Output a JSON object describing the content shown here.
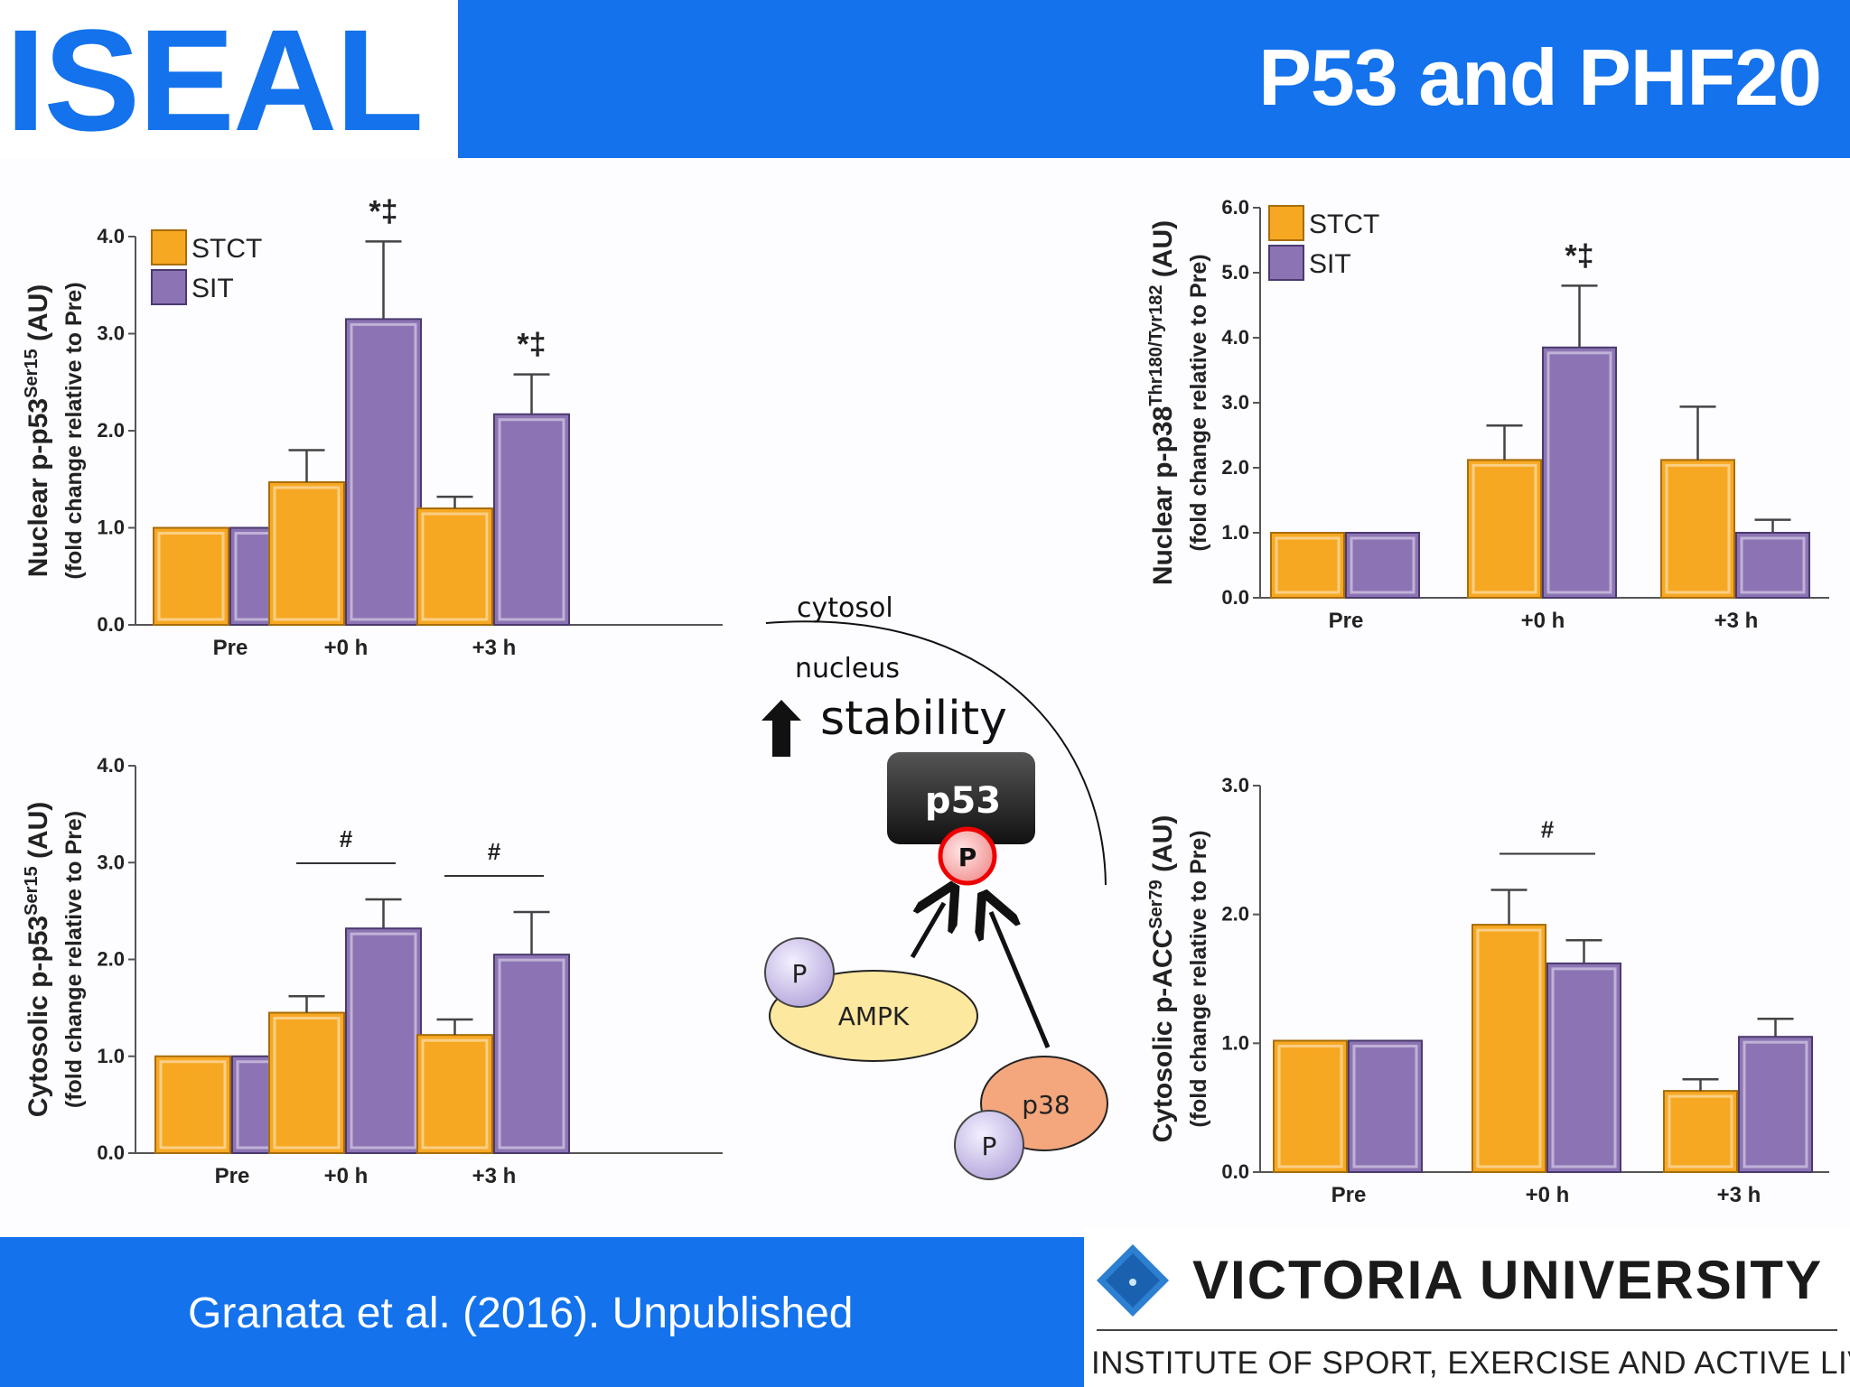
{
  "header": {
    "logo": "ISEAL",
    "title": "P53 and PHF20"
  },
  "footer": {
    "citation": "Granata et al. (2016). Unpublished",
    "university": "VICTORIA UNIVERSITY",
    "institute": "INSTITUTE OF SPORT, EXERCISE AND ACTIVE LIVING"
  },
  "colors": {
    "accent": "#1372ec",
    "stct": "#f7a823",
    "sit": "#8c74b4"
  },
  "diagram": {
    "cytosol": "cytosol",
    "nucleus": "nucleus",
    "stability": "stability",
    "p53": "p53",
    "p": "P",
    "ampk": "AMPK",
    "p38": "p38"
  },
  "chart_data": [
    {
      "type": "bar",
      "ylabel": "Nuclear p-p53",
      "ylabel_sup": "Ser15",
      "ylabel_unit": "(AU)",
      "ylabel2": "(fold change relative to Pre)",
      "categories": [
        "Pre",
        "+0 h",
        "+3 h"
      ],
      "series": [
        {
          "name": "STCT",
          "values": [
            1.0,
            1.47,
            1.2
          ],
          "errors": [
            0,
            0.33,
            0.12
          ]
        },
        {
          "name": "SIT",
          "values": [
            1.0,
            3.15,
            2.17
          ],
          "errors": [
            0,
            0.8,
            0.41
          ]
        }
      ],
      "ylim": [
        0,
        4.0
      ],
      "yticks": [
        "0.0",
        "1.0",
        "2.0",
        "3.0",
        "4.0"
      ],
      "legend": "top-left",
      "annotations": [
        {
          "category": 1,
          "text": "*‡"
        },
        {
          "category": 2,
          "text": "*‡"
        }
      ]
    },
    {
      "type": "bar",
      "ylabel": "Nuclear p-p38",
      "ylabel_sup": "Thr180/Tyr182",
      "ylabel_unit": "(AU)",
      "ylabel2": "(fold change relative to Pre)",
      "categories": [
        "Pre",
        "+0 h",
        "+3 h"
      ],
      "series": [
        {
          "name": "STCT",
          "values": [
            1.0,
            2.12,
            2.12
          ],
          "errors": [
            0,
            0.53,
            0.82
          ]
        },
        {
          "name": "SIT",
          "values": [
            1.0,
            3.85,
            1.0
          ],
          "errors": [
            0,
            0.95,
            0.2
          ]
        }
      ],
      "ylim": [
        0,
        6.0
      ],
      "yticks": [
        "0.0",
        "1.0",
        "2.0",
        "3.0",
        "4.0",
        "5.0",
        "6.0"
      ],
      "legend": "top-left",
      "annotations": [
        {
          "category": 1,
          "text": "*‡"
        }
      ]
    },
    {
      "type": "bar",
      "ylabel": "Cytosolic p-p53",
      "ylabel_sup": "Ser15",
      "ylabel_unit": "(AU)",
      "ylabel2": "(fold change relative to Pre)",
      "categories": [
        "Pre",
        "+0 h",
        "+3 h"
      ],
      "series": [
        {
          "values": [
            1.0,
            1.45,
            1.22
          ],
          "errors": [
            0,
            0.17,
            0.16
          ]
        },
        {
          "values": [
            1.0,
            2.32,
            2.05
          ],
          "errors": [
            0,
            0.3,
            0.44
          ]
        }
      ],
      "ylim": [
        0,
        4.0
      ],
      "yticks": [
        "0.0",
        "1.0",
        "2.0",
        "3.0",
        "4.0"
      ],
      "annotations": [
        {
          "category": 1,
          "text": "#",
          "bracket": true
        },
        {
          "category": 2,
          "text": "#",
          "bracket": true
        }
      ]
    },
    {
      "type": "bar",
      "ylabel": "Cytosolic p-ACC",
      "ylabel_sup": "Ser79",
      "ylabel_unit": "(AU)",
      "ylabel2": "(fold change relative to Pre)",
      "categories": [
        "Pre",
        "+0 h",
        "+3 h"
      ],
      "series": [
        {
          "values": [
            1.02,
            1.92,
            0.63
          ],
          "errors": [
            0,
            0.27,
            0.09
          ]
        },
        {
          "values": [
            1.02,
            1.62,
            1.05
          ],
          "errors": [
            0,
            0.18,
            0.14
          ]
        }
      ],
      "ylim": [
        0,
        3.0
      ],
      "yticks": [
        "0.0",
        "1.0",
        "2.0",
        "3.0"
      ],
      "annotations": [
        {
          "category": 1,
          "text": "#",
          "bracket": true
        }
      ]
    }
  ]
}
